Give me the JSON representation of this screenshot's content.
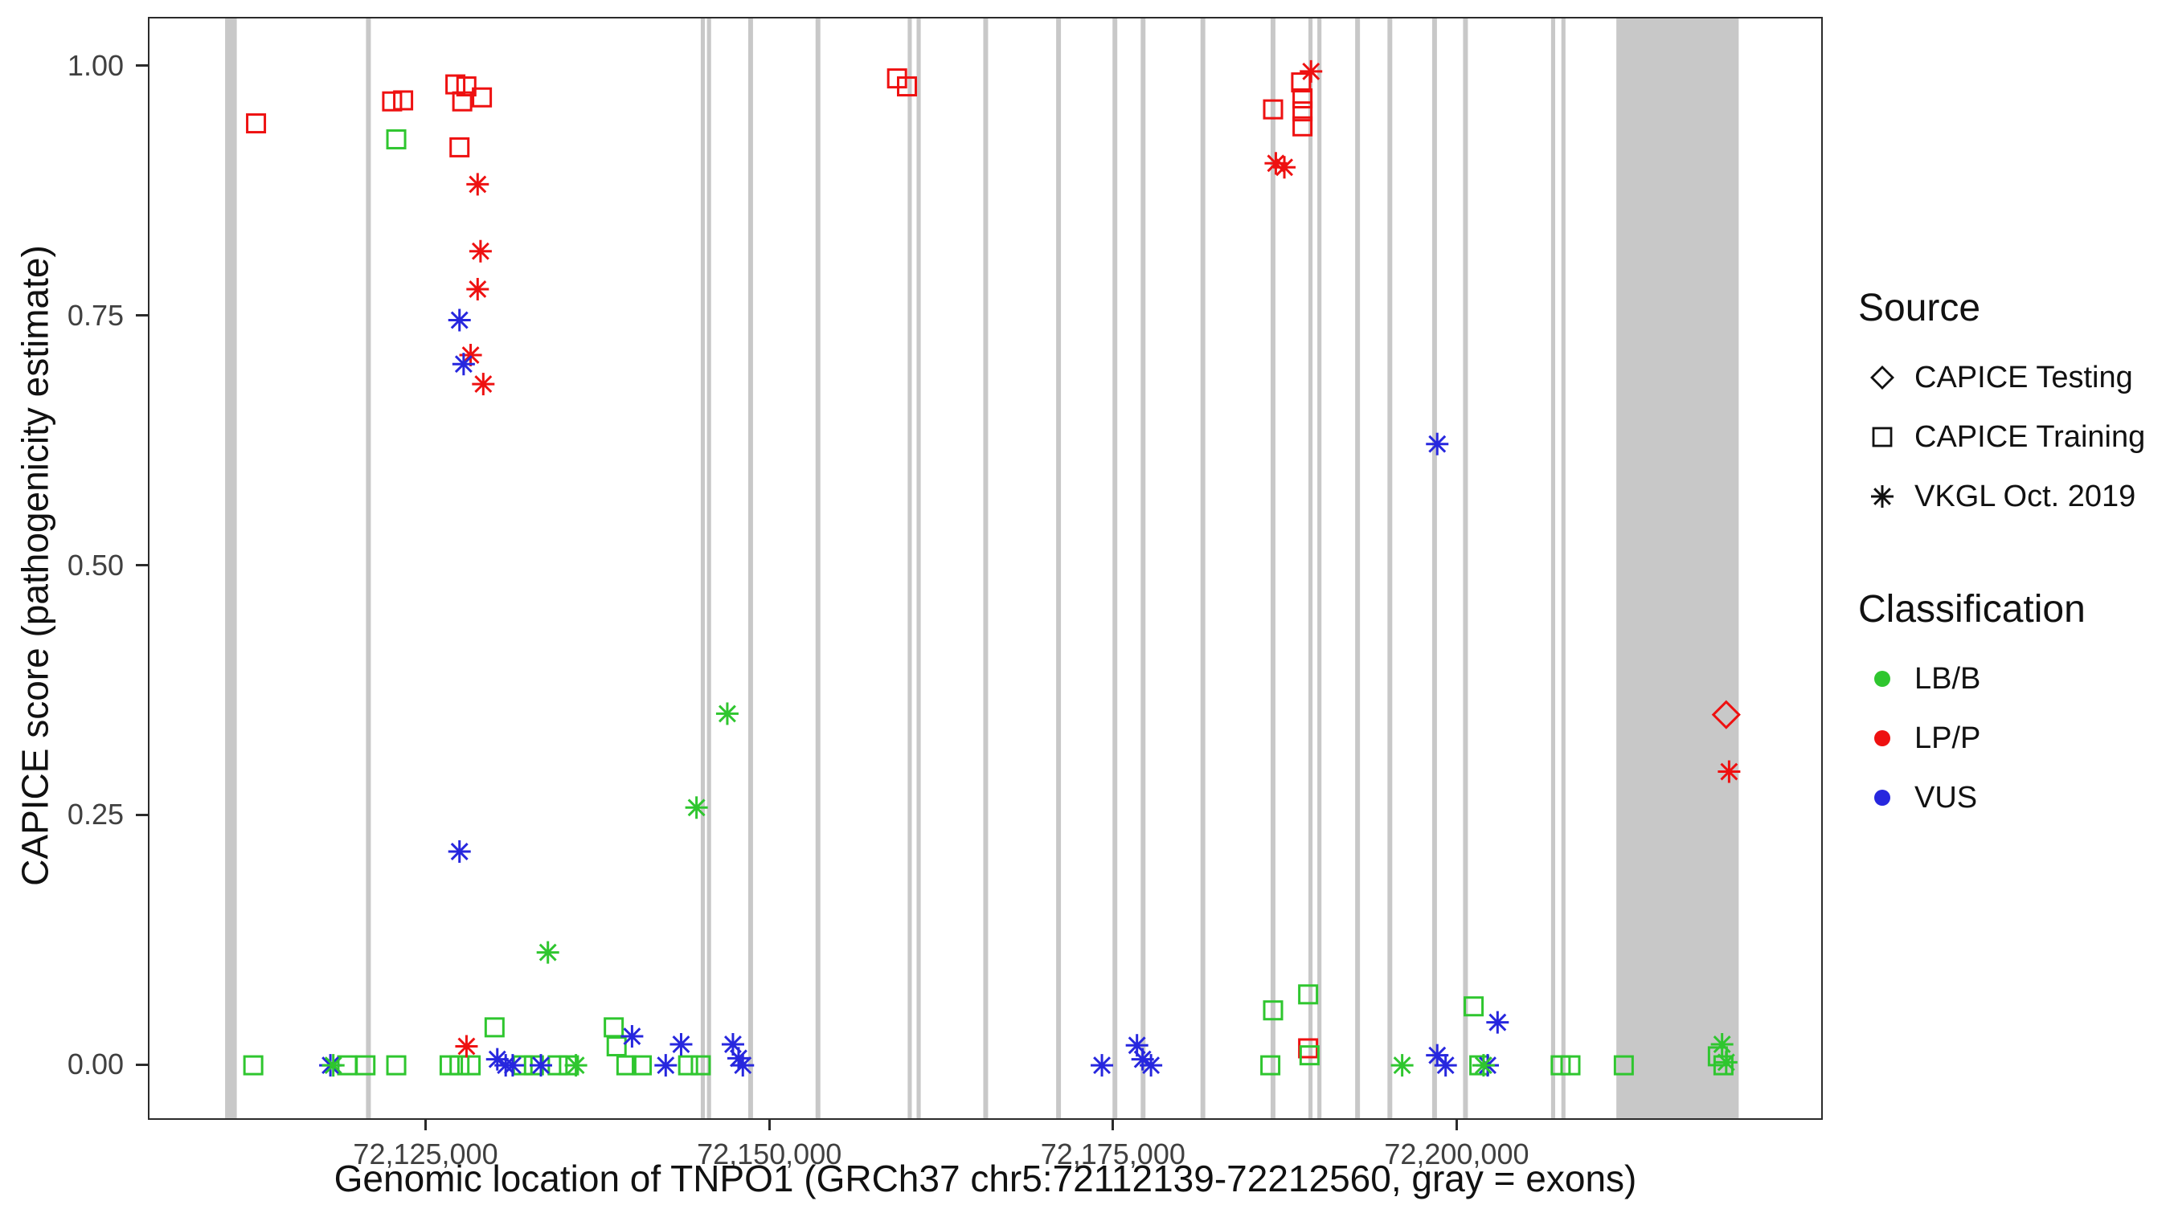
{
  "chart_data": {
    "type": "scatter",
    "title": "",
    "xlabel": "Genomic location of TNPO1 (GRCh37 chr5:72112139-72212560, gray = exons)",
    "ylabel": "CAPICE score (pathogenicity estimate)",
    "xlim": [
      72104800,
      72226400
    ],
    "ylim": [
      -0.052,
      1.049
    ],
    "x_ticks": [
      {
        "value": 72125000,
        "label": "72,125,000"
      },
      {
        "value": 72150000,
        "label": "72,150,000"
      },
      {
        "value": 72175000,
        "label": "72,175,000"
      },
      {
        "value": 72200000,
        "label": "72,200,000"
      }
    ],
    "y_ticks": [
      {
        "value": 0.0,
        "label": "0.00"
      },
      {
        "value": 0.25,
        "label": "0.25"
      },
      {
        "value": 0.5,
        "label": "0.50"
      },
      {
        "value": 0.75,
        "label": "0.75"
      },
      {
        "value": 1.0,
        "label": "1.00"
      }
    ],
    "exon_color": "#c8c8c8",
    "exons": [
      {
        "start": 72110300,
        "end": 72111150
      },
      {
        "start": 72120550,
        "end": 72120900
      },
      {
        "start": 72144900,
        "end": 72145200
      },
      {
        "start": 72145350,
        "end": 72145650
      },
      {
        "start": 72148350,
        "end": 72148700
      },
      {
        "start": 72153250,
        "end": 72153600
      },
      {
        "start": 72159950,
        "end": 72160250
      },
      {
        "start": 72160600,
        "end": 72160900
      },
      {
        "start": 72165450,
        "end": 72165800
      },
      {
        "start": 72170750,
        "end": 72171100
      },
      {
        "start": 72174850,
        "end": 72175200
      },
      {
        "start": 72176900,
        "end": 72177250
      },
      {
        "start": 72181250,
        "end": 72181600
      },
      {
        "start": 72186350,
        "end": 72186700
      },
      {
        "start": 72189100,
        "end": 72189400
      },
      {
        "start": 72189750,
        "end": 72190050
      },
      {
        "start": 72192500,
        "end": 72192850
      },
      {
        "start": 72194850,
        "end": 72195200
      },
      {
        "start": 72198100,
        "end": 72198450
      },
      {
        "start": 72200350,
        "end": 72200700
      },
      {
        "start": 72206750,
        "end": 72207050
      },
      {
        "start": 72207500,
        "end": 72207800
      },
      {
        "start": 72211500,
        "end": 72220400
      }
    ],
    "series": [
      {
        "source": "CAPICE Testing",
        "classification": "LP/P",
        "marker": "diamond",
        "color": "#ee1111",
        "points": [
          [
            72219490,
            0.352
          ]
        ]
      },
      {
        "source": "CAPICE Training",
        "classification": "LP/P",
        "marker": "square",
        "color": "#ee1111",
        "points": [
          [
            72112550,
            0.944
          ],
          [
            72122450,
            0.966
          ],
          [
            72123250,
            0.967
          ],
          [
            72127050,
            0.983
          ],
          [
            72127850,
            0.981
          ],
          [
            72127550,
            0.966
          ],
          [
            72128980,
            0.97
          ],
          [
            72127350,
            0.92
          ],
          [
            72159180,
            0.989
          ],
          [
            72159900,
            0.981
          ],
          [
            72186530,
            0.958
          ],
          [
            72188570,
            0.985
          ],
          [
            72188670,
            0.969
          ],
          [
            72188670,
            0.956
          ],
          [
            72188670,
            0.941
          ],
          [
            72189080,
            0.018
          ]
        ]
      },
      {
        "source": "CAPICE Training",
        "classification": "LB/B",
        "marker": "square",
        "color": "#2fc62f",
        "points": [
          [
            72122750,
            0.928
          ],
          [
            72112350,
            0.001
          ],
          [
            72119180,
            0.001
          ],
          [
            72120510,
            0.001
          ],
          [
            72122750,
            0.001
          ],
          [
            72126630,
            0.001
          ],
          [
            72127350,
            0.001
          ],
          [
            72128160,
            0.001
          ],
          [
            72129900,
            0.039
          ],
          [
            72131940,
            0.001
          ],
          [
            72132760,
            0.001
          ],
          [
            72134490,
            0.001
          ],
          [
            72135310,
            0.001
          ],
          [
            72138570,
            0.039
          ],
          [
            72138780,
            0.02
          ],
          [
            72139490,
            0.001
          ],
          [
            72140610,
            0.001
          ],
          [
            72143980,
            0.001
          ],
          [
            72144900,
            0.001
          ],
          [
            72186530,
            0.056
          ],
          [
            72186330,
            0.001
          ],
          [
            72189080,
            0.072
          ],
          [
            72189180,
            0.011
          ],
          [
            72201120,
            0.06
          ],
          [
            72201530,
            0.001
          ],
          [
            72207450,
            0.001
          ],
          [
            72208160,
            0.001
          ],
          [
            72212040,
            0.001
          ],
          [
            72218880,
            0.01
          ],
          [
            72219290,
            0.001
          ]
        ]
      },
      {
        "source": "VKGL Oct. 2019",
        "classification": "LP/P",
        "marker": "asterisk",
        "color": "#ee1111",
        "points": [
          [
            72128670,
            0.883
          ],
          [
            72128880,
            0.816
          ],
          [
            72128670,
            0.778
          ],
          [
            72128160,
            0.712
          ],
          [
            72129080,
            0.683
          ],
          [
            72189290,
            0.996
          ],
          [
            72186730,
            0.904
          ],
          [
            72187350,
            0.9
          ],
          [
            72127860,
            0.02
          ],
          [
            72219700,
            0.295
          ]
        ]
      },
      {
        "source": "VKGL Oct. 2019",
        "classification": "VUS",
        "marker": "asterisk",
        "color": "#2727de",
        "points": [
          [
            72127350,
            0.747
          ],
          [
            72127650,
            0.703
          ],
          [
            72127350,
            0.215
          ],
          [
            72198470,
            0.623
          ],
          [
            72117960,
            0.001
          ],
          [
            72130100,
            0.007
          ],
          [
            72130710,
            0.001
          ],
          [
            72131220,
            0.001
          ],
          [
            72133270,
            0.001
          ],
          [
            72139900,
            0.03
          ],
          [
            72142350,
            0.001
          ],
          [
            72143470,
            0.022
          ],
          [
            72147240,
            0.022
          ],
          [
            72147650,
            0.008
          ],
          [
            72147960,
            0.001
          ],
          [
            72174080,
            0.001
          ],
          [
            72176630,
            0.021
          ],
          [
            72177040,
            0.007
          ],
          [
            72177650,
            0.001
          ],
          [
            72198470,
            0.011
          ],
          [
            72199080,
            0.001
          ],
          [
            72202860,
            0.044
          ],
          [
            72202140,
            0.001
          ]
        ]
      },
      {
        "source": "VKGL Oct. 2019",
        "classification": "LB/B",
        "marker": "asterisk",
        "color": "#2fc62f",
        "points": [
          [
            72146830,
            0.353
          ],
          [
            72144590,
            0.259
          ],
          [
            72133780,
            0.114
          ],
          [
            72135820,
            0.001
          ],
          [
            72118170,
            0.001
          ],
          [
            72195920,
            0.001
          ],
          [
            72201840,
            0.001
          ],
          [
            72219190,
            0.022
          ],
          [
            72219490,
            0.004
          ]
        ]
      }
    ]
  },
  "legend": {
    "source": {
      "title": "Source",
      "items": [
        {
          "label": "CAPICE Testing",
          "marker": "diamond"
        },
        {
          "label": "CAPICE Training",
          "marker": "square"
        },
        {
          "label": "VKGL Oct. 2019",
          "marker": "asterisk"
        }
      ]
    },
    "classification": {
      "title": "Classification",
      "items": [
        {
          "label": "LB/B",
          "color": "#2fc62f"
        },
        {
          "label": "LP/P",
          "color": "#ee1111"
        },
        {
          "label": "VUS",
          "color": "#2727de"
        }
      ]
    }
  }
}
